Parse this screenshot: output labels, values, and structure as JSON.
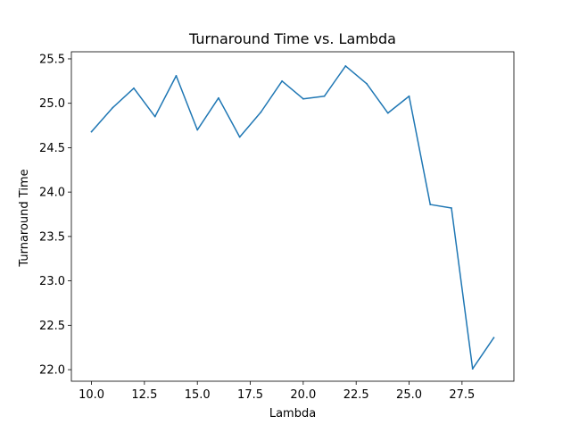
{
  "chart_data": {
    "type": "line",
    "title": "Turnaround Time vs. Lambda",
    "xlabel": "Lambda",
    "ylabel": "Turnaround Time",
    "xlim": [
      9.05,
      29.95
    ],
    "ylim": [
      21.87,
      25.58
    ],
    "xticks": [
      10.0,
      12.5,
      15.0,
      17.5,
      20.0,
      22.5,
      25.0,
      27.5
    ],
    "xtick_labels": [
      "10.0",
      "12.5",
      "15.0",
      "17.5",
      "20.0",
      "22.5",
      "25.0",
      "27.5"
    ],
    "yticks": [
      22.0,
      22.5,
      23.0,
      23.5,
      24.0,
      24.5,
      25.0,
      25.5
    ],
    "ytick_labels": [
      "22.0",
      "22.5",
      "23.0",
      "23.5",
      "24.0",
      "24.5",
      "25.0",
      "25.5"
    ],
    "grid": false,
    "series": [
      {
        "color": "#1f77b4",
        "x": [
          10,
          11,
          12,
          13,
          14,
          15,
          16,
          17,
          18,
          19,
          20,
          21,
          22,
          23,
          24,
          25,
          26,
          27,
          28,
          29
        ],
        "y": [
          24.68,
          24.95,
          25.17,
          24.85,
          25.31,
          24.7,
          25.06,
          24.62,
          24.9,
          25.25,
          25.05,
          25.08,
          25.42,
          25.22,
          24.89,
          25.08,
          23.86,
          23.82,
          22.01,
          22.36
        ]
      }
    ]
  }
}
